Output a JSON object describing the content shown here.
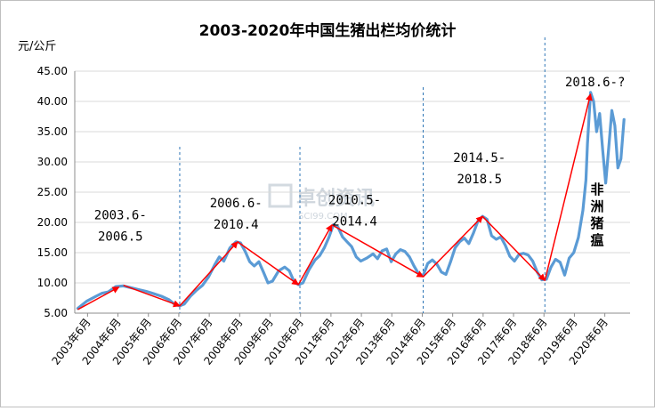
{
  "chart_data": {
    "type": "line",
    "title": "2003-2020年中国生猪出栏均价统计",
    "ylabel": "元/公斤",
    "ylim": [
      5,
      45
    ],
    "y_ticks": [
      "5.00",
      "10.00",
      "15.00",
      "20.00",
      "25.00",
      "30.00",
      "35.00",
      "40.00",
      "45.00"
    ],
    "x_tick_labels": [
      "2003年6月",
      "2004年6月",
      "2005年6月",
      "2006年6月",
      "2007年6月",
      "2008年6月",
      "2009年6月",
      "2010年6月",
      "2011年6月",
      "2012年6月",
      "2013年6月",
      "2014年6月",
      "2015年6月",
      "2016年6月",
      "2017年6月",
      "2018年6月",
      "2019年6月",
      "2020年6月"
    ],
    "grid": "horizontal",
    "colors": {
      "line": "#5b9bd5",
      "trend": "#ff0000",
      "divider": "#2e75b6",
      "grid": "#d9d9d9"
    },
    "series": [
      {
        "points": [
          [
            2003.1,
            5.8
          ],
          [
            2003.4,
            7.0
          ],
          [
            2003.7,
            7.8
          ],
          [
            2003.9,
            8.3
          ],
          [
            2004.1,
            8.5
          ],
          [
            2004.35,
            9.4
          ],
          [
            2004.6,
            9.5
          ],
          [
            2004.85,
            9.2
          ],
          [
            2005.1,
            8.9
          ],
          [
            2005.35,
            8.6
          ],
          [
            2005.6,
            8.2
          ],
          [
            2005.85,
            7.8
          ],
          [
            2006.1,
            7.2
          ],
          [
            2006.3,
            6.4
          ],
          [
            2006.45,
            6.2
          ],
          [
            2006.6,
            6.5
          ],
          [
            2006.8,
            7.8
          ],
          [
            2007.0,
            8.8
          ],
          [
            2007.2,
            9.6
          ],
          [
            2007.4,
            11.0
          ],
          [
            2007.6,
            13.0
          ],
          [
            2007.75,
            14.3
          ],
          [
            2007.9,
            13.6
          ],
          [
            2008.1,
            15.8
          ],
          [
            2008.3,
            16.8
          ],
          [
            2008.45,
            16.6
          ],
          [
            2008.6,
            15.2
          ],
          [
            2008.75,
            13.5
          ],
          [
            2008.9,
            12.8
          ],
          [
            2009.05,
            13.5
          ],
          [
            2009.2,
            11.8
          ],
          [
            2009.35,
            10.0
          ],
          [
            2009.5,
            10.3
          ],
          [
            2009.7,
            12.0
          ],
          [
            2009.9,
            12.6
          ],
          [
            2010.05,
            12.0
          ],
          [
            2010.2,
            10.3
          ],
          [
            2010.35,
            9.7
          ],
          [
            2010.5,
            10.0
          ],
          [
            2010.7,
            12.2
          ],
          [
            2010.9,
            13.8
          ],
          [
            2011.05,
            14.5
          ],
          [
            2011.2,
            15.8
          ],
          [
            2011.35,
            17.5
          ],
          [
            2011.5,
            19.6
          ],
          [
            2011.65,
            19.2
          ],
          [
            2011.8,
            17.6
          ],
          [
            2011.95,
            16.8
          ],
          [
            2012.1,
            16.0
          ],
          [
            2012.25,
            14.3
          ],
          [
            2012.4,
            13.6
          ],
          [
            2012.6,
            14.1
          ],
          [
            2012.8,
            14.8
          ],
          [
            2012.95,
            14.0
          ],
          [
            2013.1,
            15.3
          ],
          [
            2013.25,
            15.6
          ],
          [
            2013.4,
            13.5
          ],
          [
            2013.55,
            14.8
          ],
          [
            2013.7,
            15.5
          ],
          [
            2013.85,
            15.2
          ],
          [
            2014.0,
            14.3
          ],
          [
            2014.15,
            12.8
          ],
          [
            2014.3,
            11.5
          ],
          [
            2014.45,
            11.2
          ],
          [
            2014.6,
            13.2
          ],
          [
            2014.75,
            13.8
          ],
          [
            2014.9,
            13.1
          ],
          [
            2015.05,
            11.8
          ],
          [
            2015.2,
            11.4
          ],
          [
            2015.35,
            13.5
          ],
          [
            2015.5,
            15.8
          ],
          [
            2015.65,
            16.8
          ],
          [
            2015.8,
            17.4
          ],
          [
            2015.95,
            16.5
          ],
          [
            2016.1,
            18.2
          ],
          [
            2016.25,
            20.2
          ],
          [
            2016.4,
            21.0
          ],
          [
            2016.55,
            20.5
          ],
          [
            2016.7,
            17.8
          ],
          [
            2016.85,
            17.2
          ],
          [
            2017.0,
            17.6
          ],
          [
            2017.15,
            16.2
          ],
          [
            2017.3,
            14.4
          ],
          [
            2017.45,
            13.6
          ],
          [
            2017.6,
            14.7
          ],
          [
            2017.75,
            14.9
          ],
          [
            2017.9,
            14.6
          ],
          [
            2018.05,
            13.6
          ],
          [
            2018.2,
            11.8
          ],
          [
            2018.35,
            10.5
          ],
          [
            2018.5,
            10.6
          ],
          [
            2018.65,
            12.6
          ],
          [
            2018.8,
            13.9
          ],
          [
            2018.95,
            13.4
          ],
          [
            2019.1,
            11.3
          ],
          [
            2019.25,
            14.1
          ],
          [
            2019.4,
            15.0
          ],
          [
            2019.55,
            17.5
          ],
          [
            2019.7,
            22.0
          ],
          [
            2019.8,
            27.0
          ],
          [
            2019.85,
            33.0
          ],
          [
            2019.95,
            41.5
          ],
          [
            2020.05,
            40.0
          ],
          [
            2020.15,
            35.0
          ],
          [
            2020.25,
            38.0
          ],
          [
            2020.35,
            32.0
          ],
          [
            2020.45,
            26.5
          ],
          [
            2020.55,
            32.5
          ],
          [
            2020.65,
            38.5
          ],
          [
            2020.75,
            36.0
          ],
          [
            2020.85,
            29.0
          ],
          [
            2020.95,
            30.5
          ],
          [
            2021.05,
            37.0
          ]
        ]
      }
    ],
    "trend_lines": [
      [
        [
          2003.1,
          5.6
        ],
        [
          2004.45,
          9.3
        ]
      ],
      [
        [
          2004.6,
          9.6
        ],
        [
          2006.45,
          6.2
        ]
      ],
      [
        [
          2006.45,
          6.2
        ],
        [
          2008.35,
          16.8
        ]
      ],
      [
        [
          2008.35,
          16.8
        ],
        [
          2010.35,
          9.7
        ]
      ],
      [
        [
          2010.35,
          9.7
        ],
        [
          2011.45,
          19.6
        ]
      ],
      [
        [
          2011.45,
          19.6
        ],
        [
          2014.45,
          11.0
        ]
      ],
      [
        [
          2014.45,
          11.0
        ],
        [
          2016.4,
          21.0
        ]
      ],
      [
        [
          2016.4,
          21.0
        ],
        [
          2018.45,
          10.4
        ]
      ],
      [
        [
          2018.45,
          10.4
        ],
        [
          2019.95,
          41.2
        ]
      ]
    ],
    "dividers_x": [
      2006.45,
      2010.4,
      2014.45,
      2018.45
    ],
    "annotations": [
      {
        "lines": [
          "2003.6-",
          "2006.5"
        ],
        "x": 2004.5,
        "y": 20.5
      },
      {
        "lines": [
          "2006.6-",
          "2010.4"
        ],
        "x": 2008.3,
        "y": 22.5
      },
      {
        "lines": [
          "2010.5-",
          "2014.4"
        ],
        "x": 2012.2,
        "y": 23.0
      },
      {
        "lines": [
          "2014.5-",
          "2018.5"
        ],
        "x": 2016.3,
        "y": 30.0
      },
      {
        "lines": [
          "2018.6-?"
        ],
        "x": 2020.1,
        "y": 42.5
      }
    ],
    "vertical_annotation": "非洲猪瘟",
    "watermark": {
      "main": "卓创资讯",
      "sub": "SCI99.COM"
    }
  }
}
